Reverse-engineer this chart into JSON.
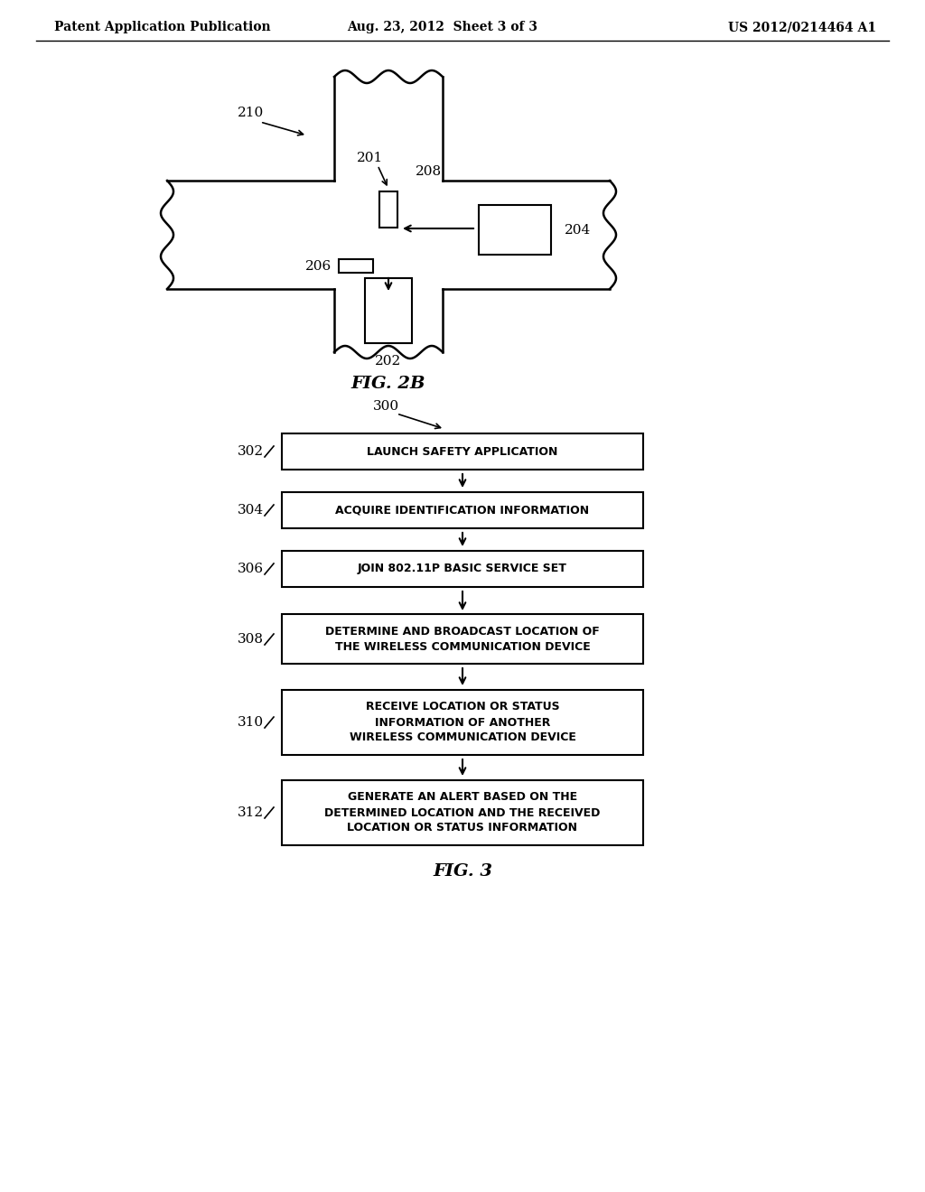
{
  "bg_color": "#ffffff",
  "header_left": "Patent Application Publication",
  "header_center": "Aug. 23, 2012  Sheet 3 of 3",
  "header_right": "US 2012/0214464 A1",
  "fig2b_label": "FIG. 2B",
  "fig3_label": "FIG. 3",
  "flow_steps": [
    {
      "id": "302",
      "text": "LAUNCH SAFETY APPLICATION",
      "lines": 1
    },
    {
      "id": "304",
      "text": "ACQUIRE IDENTIFICATION INFORMATION",
      "lines": 1
    },
    {
      "id": "306",
      "text": "JOIN 802.11P BASIC SERVICE SET",
      "lines": 1
    },
    {
      "id": "308",
      "text": "DETERMINE AND BROADCAST LOCATION OF\nTHE WIRELESS COMMUNICATION DEVICE",
      "lines": 2
    },
    {
      "id": "310",
      "text": "RECEIVE LOCATION OR STATUS\nINFORMATION OF ANOTHER\nWIRELESS COMMUNICATION DEVICE",
      "lines": 3
    },
    {
      "id": "312",
      "text": "GENERATE AN ALERT BASED ON THE\nDETERMINED LOCATION AND THE RECEIVED\nLOCATION OR STATUS INFORMATION",
      "lines": 3
    }
  ]
}
